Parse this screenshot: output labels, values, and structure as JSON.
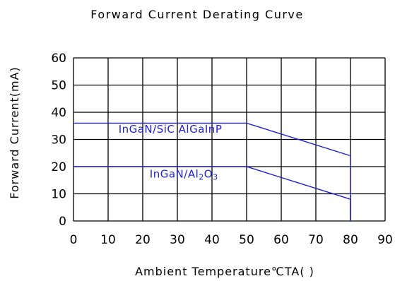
{
  "chart_data": {
    "type": "line",
    "title": "Forward Current Derating Curve",
    "xlabel": "Ambient Temperature℃TA(   )",
    "ylabel": "Forward Current(mA)",
    "xlim": [
      0,
      90
    ],
    "ylim": [
      0,
      60
    ],
    "xticks": [
      0,
      10,
      20,
      30,
      40,
      50,
      60,
      70,
      80,
      90
    ],
    "yticks": [
      0,
      10,
      20,
      30,
      40,
      50,
      60
    ],
    "grid": true,
    "series_color": "#1f1fd6",
    "series": [
      {
        "name": "InGaN/SiC AlGaInP",
        "x": [
          0,
          50,
          80,
          80
        ],
        "y": [
          36,
          36,
          24,
          0
        ]
      },
      {
        "name": "InGaN/Al2O3",
        "x": [
          0,
          50,
          80,
          80
        ],
        "y": [
          20,
          20,
          8,
          0
        ]
      }
    ],
    "series_labels": [
      {
        "text": "InGaN/SiC  AlGaInP",
        "at": [
          13,
          32.5
        ]
      },
      {
        "text": "InGaN/Al2O3",
        "at": [
          22,
          16
        ]
      }
    ]
  }
}
